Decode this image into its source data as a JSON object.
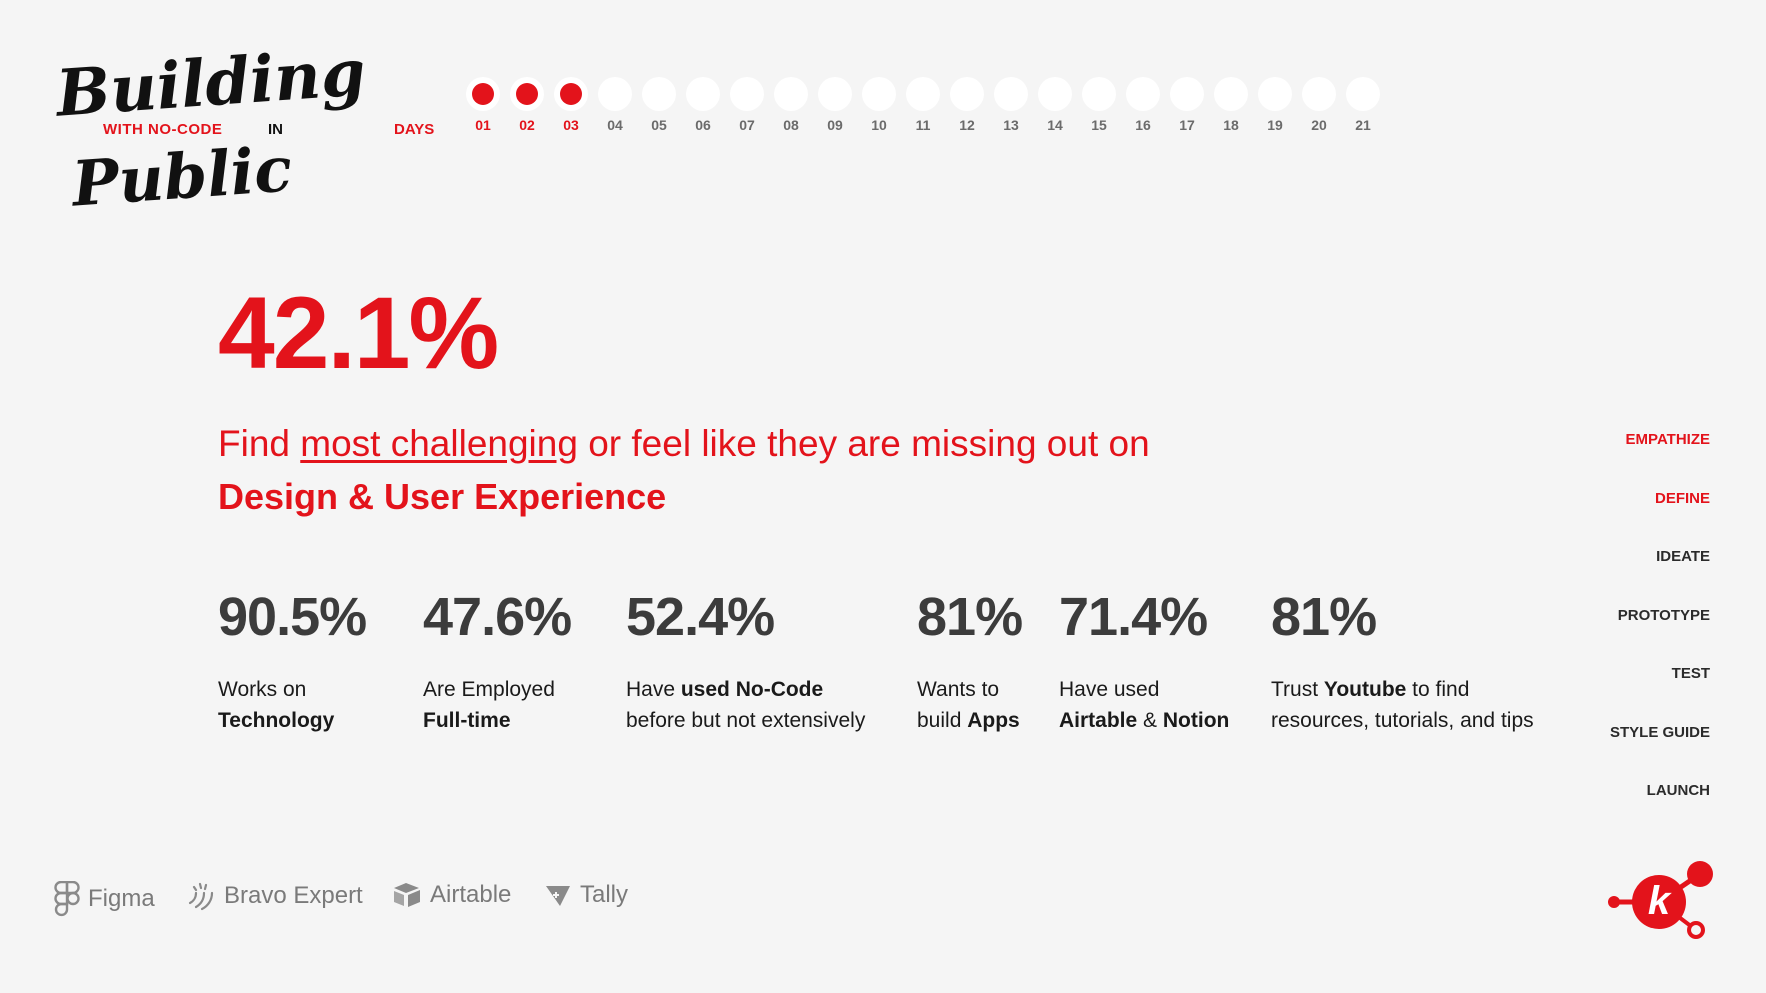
{
  "logo": {
    "line1": "Building",
    "sub": "WITH NO-CODE",
    "in": "IN",
    "line2": "Public"
  },
  "days": {
    "label": "DAYS",
    "items": [
      "01",
      "02",
      "03",
      "04",
      "05",
      "06",
      "07",
      "08",
      "09",
      "10",
      "11",
      "12",
      "13",
      "14",
      "15",
      "16",
      "17",
      "18",
      "19",
      "20",
      "21"
    ],
    "active_count": 3
  },
  "hero": {
    "value": "42.1%",
    "text_before": "Find ",
    "text_underlined": "most challenging",
    "text_after": " or feel like they are missing out on",
    "bold_line": "Design & User Experience"
  },
  "stats": [
    {
      "value": "90.5%",
      "line1": [
        {
          "t": "Works on",
          "b": false
        }
      ],
      "line2": [
        {
          "t": "Technology",
          "b": true
        }
      ]
    },
    {
      "value": "47.6%",
      "line1": [
        {
          "t": "Are Employed",
          "b": false
        }
      ],
      "line2": [
        {
          "t": "Full-time",
          "b": true
        }
      ]
    },
    {
      "value": "52.4%",
      "line1": [
        {
          "t": "Have ",
          "b": false
        },
        {
          "t": "used No-Code",
          "b": true
        }
      ],
      "line2": [
        {
          "t": "before but not extensively",
          "b": false
        }
      ]
    },
    {
      "value": "81%",
      "line1": [
        {
          "t": "Wants to",
          "b": false
        }
      ],
      "line2": [
        {
          "t": "build ",
          "b": false
        },
        {
          "t": "Apps",
          "b": true
        }
      ]
    },
    {
      "value": "71.4%",
      "line1": [
        {
          "t": "Have used",
          "b": false
        }
      ],
      "line2": [
        {
          "t": "Airtable",
          "b": true
        },
        {
          "t": " & ",
          "b": false
        },
        {
          "t": "Notion",
          "b": true
        }
      ]
    },
    {
      "value": "81%",
      "line1": [
        {
          "t": "Trust ",
          "b": false
        },
        {
          "t": "Youtube",
          "b": true
        },
        {
          "t": " to find",
          "b": false
        }
      ],
      "line2": [
        {
          "t": "resources, tutorials, and tips",
          "b": false
        }
      ]
    }
  ],
  "nav": [
    "EMPATHIZE",
    "DEFINE",
    "IDEATE",
    "PROTOTYPE",
    "TEST",
    "STYLE GUIDE",
    "LAUNCH"
  ],
  "nav_active": [
    "EMPATHIZE",
    "DEFINE"
  ],
  "tools": [
    "Figma",
    "Bravo Expert",
    "Airtable",
    "Tally"
  ],
  "brand_logo_letter": "k",
  "colors": {
    "accent": "#e3131b",
    "background": "#f5f5f5",
    "stat": "#3c3c3c"
  }
}
